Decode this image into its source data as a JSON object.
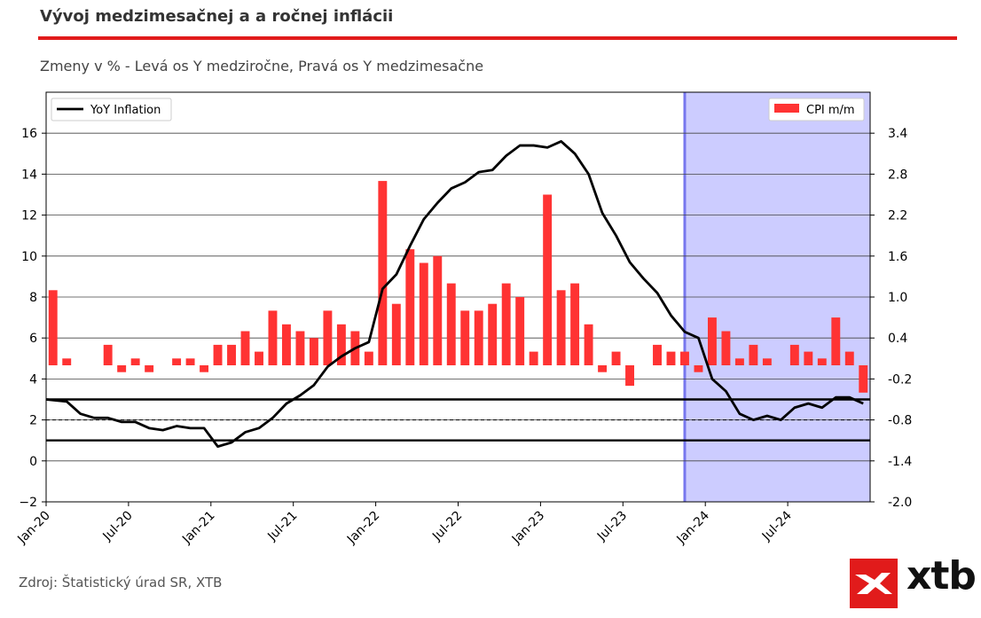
{
  "header": {
    "title": "Vývoj medzimesačnej a a ročnej inflácii",
    "subtitle": "Zmeny v % - Levá os Y medziročne, Pravá os Y medzimesačne",
    "accent_color": "#e11b1b"
  },
  "footer": {
    "source": "Zdroj: Štatistický úrad SR, XTB",
    "logo_text": "xtb",
    "logo_icon": "xtb-x-logo-icon"
  },
  "chart_data": {
    "type": "bar",
    "x_tick_labels": [
      "Jan-20",
      "Jul-20",
      "Jan-21",
      "Jul-21",
      "Jan-22",
      "Jul-22",
      "Jan-23",
      "Jul-23",
      "Jan-24",
      "Jul-24"
    ],
    "start_month": "2020-01",
    "y_left": {
      "ticks": [
        "−2",
        "0",
        "2",
        "4",
        "6",
        "8",
        "10",
        "12",
        "14",
        "16"
      ],
      "range": [
        -2,
        18
      ],
      "grid": true
    },
    "y_right": {
      "ticks": [
        "-2.0",
        "-1.4",
        "-0.8",
        "-0.2",
        "0.4",
        "1.0",
        "1.6",
        "2.2",
        "2.8",
        "3.4"
      ],
      "range": [
        -2.0,
        4.0
      ]
    },
    "series": [
      {
        "name": "YoY Inflation",
        "axis": "left",
        "type": "line",
        "color": "#000000",
        "values": [
          3.0,
          2.9,
          2.3,
          2.1,
          2.1,
          1.9,
          1.9,
          1.6,
          1.5,
          1.7,
          1.6,
          1.6,
          0.7,
          0.9,
          1.4,
          1.6,
          2.1,
          2.8,
          3.2,
          3.7,
          4.6,
          5.1,
          5.5,
          5.8,
          8.4,
          9.1,
          10.5,
          11.8,
          12.6,
          13.3,
          13.6,
          14.1,
          14.2,
          14.9,
          15.4,
          15.4,
          15.3,
          15.6,
          15.0,
          14.0,
          12.1,
          11.0,
          9.7,
          8.9,
          8.2,
          7.1,
          6.3,
          6.0,
          4.0,
          3.4,
          2.3,
          2.0,
          2.2,
          2.0,
          2.6,
          2.8,
          2.6,
          3.1,
          3.1,
          2.8
        ]
      },
      {
        "name": "CPI m/m",
        "axis": "right",
        "type": "bar",
        "color": "#ff3333",
        "values": [
          1.1,
          0.1,
          0.0,
          0.0,
          0.3,
          -0.1,
          0.1,
          -0.1,
          0.0,
          0.1,
          0.1,
          -0.1,
          0.3,
          0.3,
          0.5,
          0.2,
          0.8,
          0.6,
          0.5,
          0.4,
          0.8,
          0.6,
          0.5,
          0.2,
          2.7,
          0.9,
          1.7,
          1.5,
          1.6,
          1.2,
          0.8,
          0.8,
          0.9,
          1.2,
          1.0,
          0.2,
          2.5,
          1.1,
          1.2,
          0.6,
          -0.1,
          0.2,
          -0.3,
          0.0,
          0.3,
          0.2,
          0.2,
          -0.1,
          0.7,
          0.5,
          0.1,
          0.3,
          0.1,
          0.0,
          0.3,
          0.2,
          0.1,
          0.7,
          0.2,
          -0.4
        ]
      }
    ],
    "reference_lines_left": [
      {
        "value": 3,
        "style": "solid"
      },
      {
        "value": 1,
        "style": "solid"
      },
      {
        "value": 2,
        "style": "dashed"
      }
    ],
    "shaded_region": {
      "from": "2023-12",
      "to": "2024-12",
      "color": "#ccccff",
      "edge_color": "#7777ee"
    },
    "legend_left": {
      "label": "YoY Inflation",
      "placement": "top-left"
    },
    "legend_right": {
      "label": "CPI m/m",
      "placement": "top-right"
    }
  }
}
